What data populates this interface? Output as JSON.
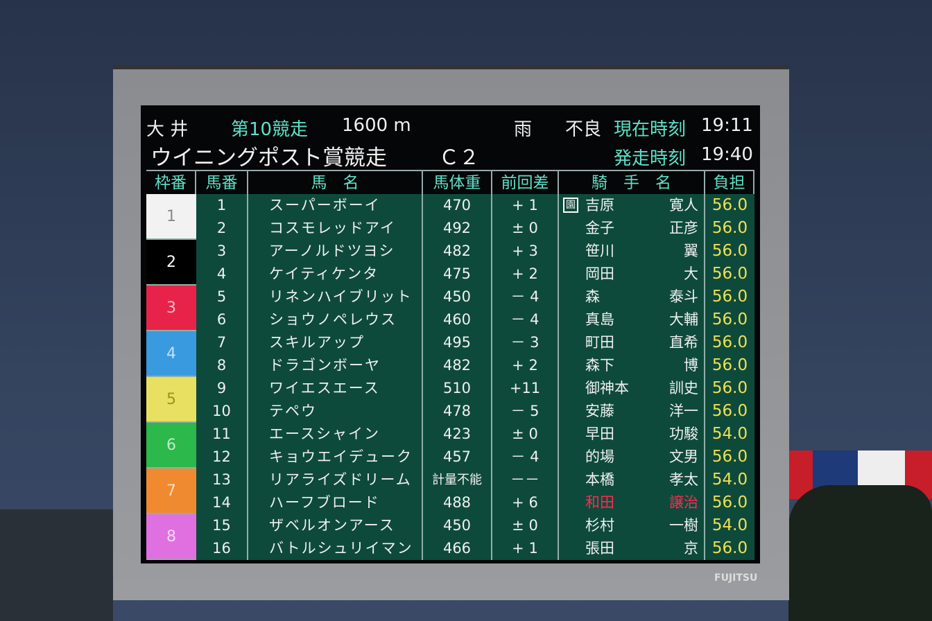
{
  "header": {
    "track": "大 井",
    "race_no": "第10競走",
    "distance": "1600 m",
    "weather": "雨",
    "condition": "不良",
    "now_label": "現在時刻",
    "now_time": "19:11",
    "race_name": "ウイニングポスト賞競走",
    "class": "Ｃ２",
    "start_label": "発走時刻",
    "start_time": "19:40"
  },
  "columns": [
    "枠番",
    "馬番",
    "馬　名",
    "馬体重",
    "前回差",
    "騎　手　名",
    "負担"
  ],
  "frame_colors": {
    "1": "#f2f2f2",
    "2": "#000000",
    "3": "#e8234a",
    "4": "#3a9ae0",
    "5": "#e8e060",
    "6": "#2cb84a",
    "7": "#f08a30",
    "8": "#e070e0"
  },
  "rows": [
    {
      "waku": "1",
      "num": "1",
      "name": "スーパーボーイ",
      "weight": "470",
      "diff": "+ 1",
      "mark": "園",
      "j1": "吉原",
      "j2": "寛人",
      "load": "56.0"
    },
    {
      "waku": "1",
      "num": "2",
      "name": "コスモレッドアイ",
      "weight": "492",
      "diff": "± 0",
      "j1": "金子",
      "j2": "正彦",
      "load": "56.0"
    },
    {
      "waku": "2",
      "num": "3",
      "name": "アーノルドツヨシ",
      "weight": "482",
      "diff": "+ 3",
      "j1": "笹川",
      "j2": "翼",
      "load": "56.0"
    },
    {
      "waku": "2",
      "num": "4",
      "name": "ケイティケンタ",
      "weight": "475",
      "diff": "+ 2",
      "j1": "岡田",
      "j2": "大",
      "load": "56.0"
    },
    {
      "waku": "3",
      "num": "5",
      "name": "リネンハイブリット",
      "weight": "450",
      "diff": "－ 4",
      "j1": "森",
      "j2": "泰斗",
      "load": "56.0"
    },
    {
      "waku": "3",
      "num": "6",
      "name": "ショウノペレウス",
      "weight": "460",
      "diff": "－ 4",
      "j1": "真島",
      "j2": "大輔",
      "load": "56.0"
    },
    {
      "waku": "4",
      "num": "7",
      "name": "スキルアップ",
      "weight": "495",
      "diff": "－ 3",
      "j1": "町田",
      "j2": "直希",
      "load": "56.0"
    },
    {
      "waku": "4",
      "num": "8",
      "name": "ドラゴンボーヤ",
      "weight": "482",
      "diff": "+ 2",
      "j1": "森下",
      "j2": "博",
      "load": "56.0"
    },
    {
      "waku": "5",
      "num": "9",
      "name": "ワイエスエース",
      "weight": "510",
      "diff": "+11",
      "j1": "御神本",
      "j2": "訓史",
      "load": "56.0"
    },
    {
      "waku": "5",
      "num": "10",
      "name": "テペウ",
      "weight": "478",
      "diff": "－ 5",
      "j1": "安藤",
      "j2": "洋一",
      "load": "56.0"
    },
    {
      "waku": "6",
      "num": "11",
      "name": "エースシャイン",
      "weight": "423",
      "diff": "± 0",
      "j1": "早田",
      "j2": "功駿",
      "load": "54.0"
    },
    {
      "waku": "6",
      "num": "12",
      "name": "キョウエイデューク",
      "weight": "457",
      "diff": "－ 4",
      "j1": "的場",
      "j2": "文男",
      "load": "56.0"
    },
    {
      "waku": "7",
      "num": "13",
      "name": "リアライズドリーム",
      "weight": "計量不能",
      "diff": "－－",
      "j1": "本橋",
      "j2": "孝太",
      "load": "54.0"
    },
    {
      "waku": "7",
      "num": "14",
      "name": "ハーフブロード",
      "weight": "488",
      "diff": "+ 6",
      "j1": "和田",
      "j2": "譲治",
      "load": "56.0",
      "highlight": true
    },
    {
      "waku": "8",
      "num": "15",
      "name": "ザベルオンアース",
      "weight": "450",
      "diff": "± 0",
      "j1": "杉村",
      "j2": "一樹",
      "load": "54.0"
    },
    {
      "waku": "8",
      "num": "16",
      "name": "バトルシュリイマン",
      "weight": "466",
      "diff": "+ 1",
      "j1": "張田",
      "j2": "京",
      "load": "56.0"
    }
  ],
  "sponsor_logo": "FUJITSU"
}
